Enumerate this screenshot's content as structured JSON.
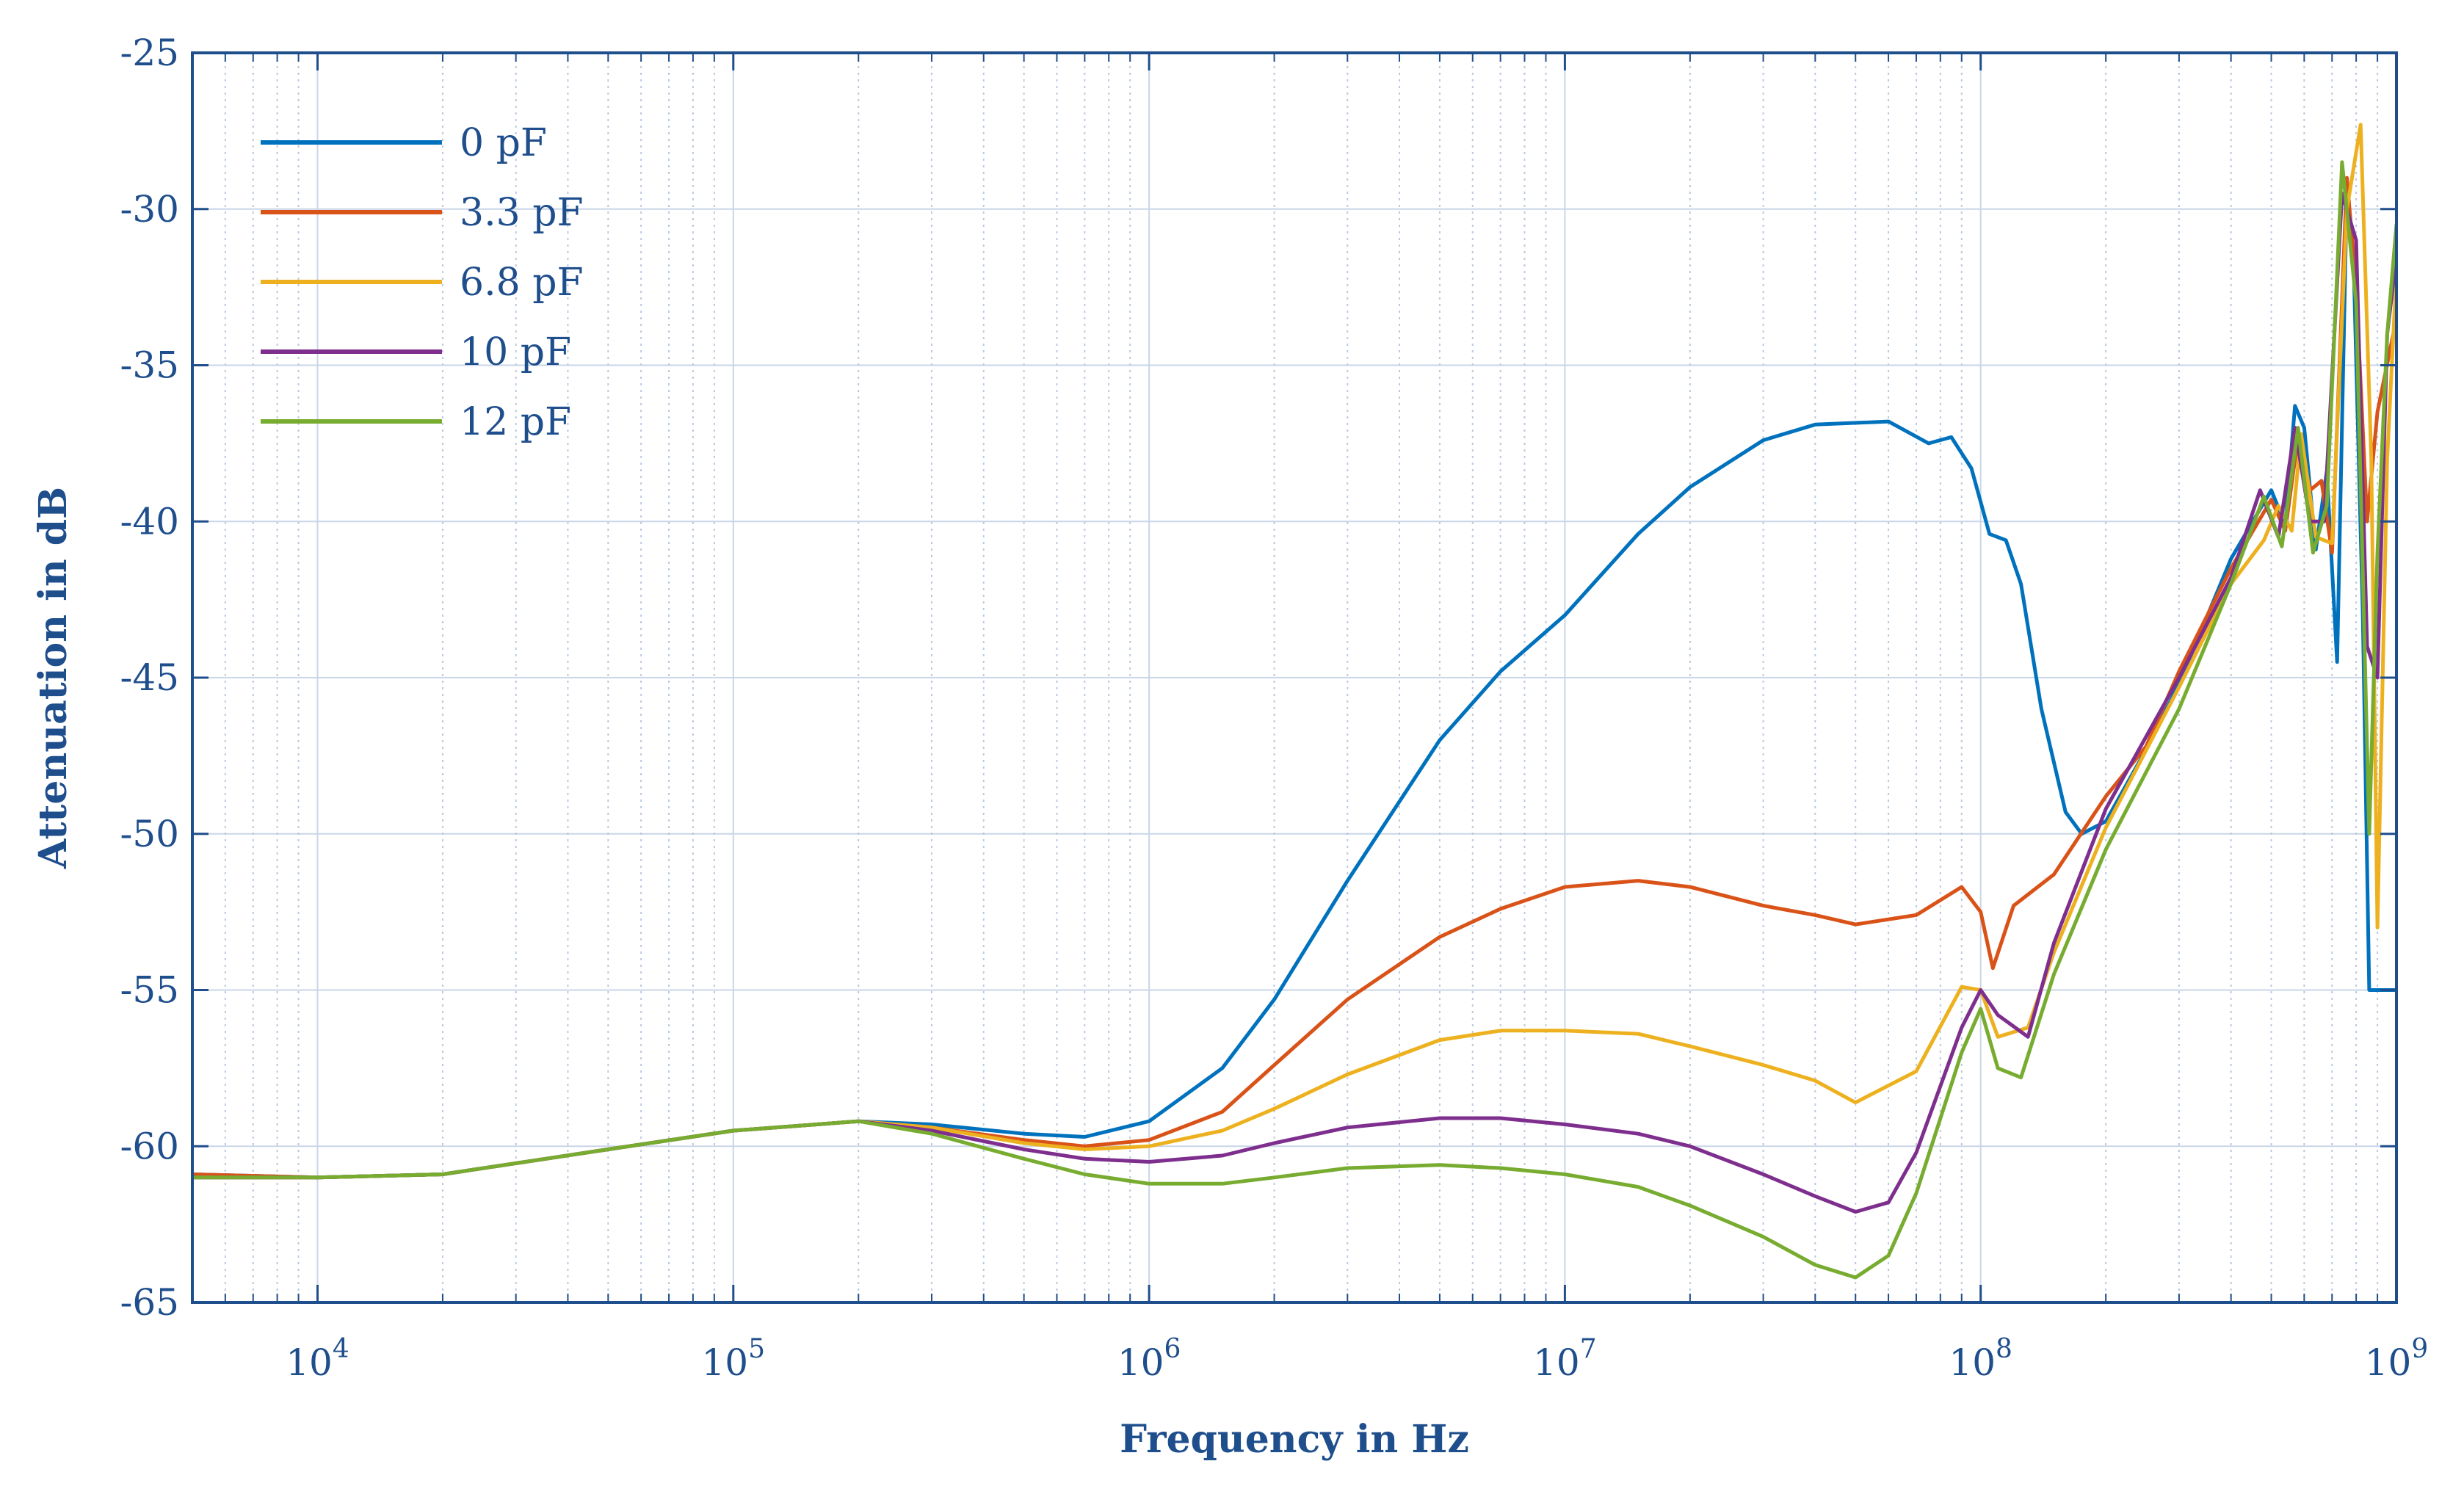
{
  "chart_data": {
    "type": "line",
    "title": "",
    "xlabel": "Frequency in Hz",
    "ylabel": "Attenuation in dB",
    "xscale": "log",
    "xlim": [
      5000,
      1000000000
    ],
    "ylim": [
      -65,
      -25
    ],
    "grid": true,
    "legend_position": "top-left",
    "axis_color": "#1f4e8c",
    "yticks": [
      -25,
      -30,
      -35,
      -40,
      -45,
      -50,
      -55,
      -60,
      -65
    ],
    "ytick_labels": [
      "-25",
      "-30",
      "-35",
      "-40",
      "-45",
      "-50",
      "-55",
      "-60",
      "-65"
    ],
    "xticks": [
      {
        "value": 10000,
        "base": "10",
        "exp": "4"
      },
      {
        "value": 100000,
        "base": "10",
        "exp": "5"
      },
      {
        "value": 1000000,
        "base": "10",
        "exp": "6"
      },
      {
        "value": 10000000,
        "base": "10",
        "exp": "7"
      },
      {
        "value": 100000000,
        "base": "10",
        "exp": "8"
      },
      {
        "value": 1000000000,
        "base": "10",
        "exp": "9"
      }
    ],
    "series": [
      {
        "name": "0 pF",
        "color": "#0072bd",
        "points": [
          [
            5000,
            -60.9
          ],
          [
            10000,
            -61.0
          ],
          [
            20000,
            -60.9
          ],
          [
            50000,
            -60.1
          ],
          [
            100000,
            -59.5
          ],
          [
            200000,
            -59.2
          ],
          [
            300000,
            -59.3
          ],
          [
            500000,
            -59.6
          ],
          [
            700000,
            -59.7
          ],
          [
            1000000,
            -59.2
          ],
          [
            1500000,
            -57.5
          ],
          [
            2000000,
            -55.3
          ],
          [
            3000000,
            -51.5
          ],
          [
            5000000,
            -47.0
          ],
          [
            7000000,
            -44.8
          ],
          [
            10000000,
            -43.0
          ],
          [
            15000000,
            -40.4
          ],
          [
            20000000,
            -38.9
          ],
          [
            30000000,
            -37.4
          ],
          [
            40000000,
            -36.9
          ],
          [
            60000000,
            -36.8
          ],
          [
            75000000,
            -37.5
          ],
          [
            85000000,
            -37.3
          ],
          [
            95000000,
            -38.3
          ],
          [
            105000000,
            -40.4
          ],
          [
            115000000,
            -40.6
          ],
          [
            125000000,
            -42.0
          ],
          [
            140000000,
            -46.0
          ],
          [
            160000000,
            -49.3
          ],
          [
            175000000,
            -50.0
          ],
          [
            200000000,
            -49.6
          ],
          [
            250000000,
            -47.3
          ],
          [
            300000000,
            -45.2
          ],
          [
            400000000,
            -41.2
          ],
          [
            470000000,
            -39.6
          ],
          [
            500000000,
            -39.0
          ],
          [
            540000000,
            -40.1
          ],
          [
            570000000,
            -36.3
          ],
          [
            600000000,
            -37.0
          ],
          [
            640000000,
            -40.9
          ],
          [
            680000000,
            -38.4
          ],
          [
            720000000,
            -44.5
          ],
          [
            760000000,
            -29.3
          ],
          [
            790000000,
            -32.0
          ],
          [
            830000000,
            -43.0
          ],
          [
            860000000,
            -55.0
          ],
          [
            900000000,
            -55.0
          ],
          [
            1000000000,
            -55.0
          ]
        ]
      },
      {
        "name": "3.3 pF",
        "color": "#d95319",
        "points": [
          [
            5000,
            -60.9
          ],
          [
            10000,
            -61.0
          ],
          [
            20000,
            -60.9
          ],
          [
            50000,
            -60.1
          ],
          [
            100000,
            -59.5
          ],
          [
            200000,
            -59.2
          ],
          [
            300000,
            -59.4
          ],
          [
            500000,
            -59.8
          ],
          [
            700000,
            -60.0
          ],
          [
            1000000,
            -59.8
          ],
          [
            1500000,
            -58.9
          ],
          [
            2000000,
            -57.4
          ],
          [
            3000000,
            -55.3
          ],
          [
            5000000,
            -53.3
          ],
          [
            7000000,
            -52.4
          ],
          [
            10000000,
            -51.7
          ],
          [
            15000000,
            -51.5
          ],
          [
            20000000,
            -51.7
          ],
          [
            30000000,
            -52.3
          ],
          [
            40000000,
            -52.6
          ],
          [
            50000000,
            -52.9
          ],
          [
            70000000,
            -52.6
          ],
          [
            90000000,
            -51.7
          ],
          [
            100000000,
            -52.5
          ],
          [
            107000000,
            -54.3
          ],
          [
            120000000,
            -52.3
          ],
          [
            150000000,
            -51.3
          ],
          [
            200000000,
            -48.8
          ],
          [
            250000000,
            -47.2
          ],
          [
            300000000,
            -44.8
          ],
          [
            400000000,
            -41.5
          ],
          [
            500000000,
            -39.3
          ],
          [
            540000000,
            -40.3
          ],
          [
            580000000,
            -37.3
          ],
          [
            620000000,
            -39.0
          ],
          [
            660000000,
            -38.7
          ],
          [
            700000000,
            -41.0
          ],
          [
            760000000,
            -29.0
          ],
          [
            800000000,
            -32.5
          ],
          [
            850000000,
            -40.0
          ],
          [
            900000000,
            -36.5
          ],
          [
            1000000000,
            -33.5
          ]
        ]
      },
      {
        "name": "6.8 pF",
        "color": "#edb120",
        "points": [
          [
            5000,
            -61.0
          ],
          [
            10000,
            -61.0
          ],
          [
            20000,
            -60.9
          ],
          [
            50000,
            -60.1
          ],
          [
            100000,
            -59.5
          ],
          [
            200000,
            -59.2
          ],
          [
            300000,
            -59.4
          ],
          [
            500000,
            -59.9
          ],
          [
            700000,
            -60.1
          ],
          [
            1000000,
            -60.0
          ],
          [
            1500000,
            -59.5
          ],
          [
            2000000,
            -58.8
          ],
          [
            3000000,
            -57.7
          ],
          [
            5000000,
            -56.6
          ],
          [
            7000000,
            -56.3
          ],
          [
            10000000,
            -56.3
          ],
          [
            15000000,
            -56.4
          ],
          [
            20000000,
            -56.8
          ],
          [
            30000000,
            -57.4
          ],
          [
            40000000,
            -57.9
          ],
          [
            50000000,
            -58.6
          ],
          [
            70000000,
            -57.6
          ],
          [
            90000000,
            -54.9
          ],
          [
            100000000,
            -55.0
          ],
          [
            110000000,
            -56.5
          ],
          [
            130000000,
            -56.2
          ],
          [
            150000000,
            -53.8
          ],
          [
            200000000,
            -49.8
          ],
          [
            300000000,
            -45.3
          ],
          [
            400000000,
            -42.0
          ],
          [
            480000000,
            -40.6
          ],
          [
            520000000,
            -39.5
          ],
          [
            560000000,
            -40.3
          ],
          [
            590000000,
            -37.2
          ],
          [
            640000000,
            -40.5
          ],
          [
            700000000,
            -40.7
          ],
          [
            760000000,
            -30.0
          ],
          [
            820000000,
            -27.3
          ],
          [
            870000000,
            -38.0
          ],
          [
            900000000,
            -53.0
          ],
          [
            950000000,
            -38.0
          ],
          [
            1000000000,
            -32.0
          ]
        ]
      },
      {
        "name": "10 pF",
        "color": "#7e2f8e",
        "points": [
          [
            5000,
            -61.0
          ],
          [
            10000,
            -61.0
          ],
          [
            20000,
            -60.9
          ],
          [
            50000,
            -60.1
          ],
          [
            100000,
            -59.5
          ],
          [
            200000,
            -59.2
          ],
          [
            300000,
            -59.5
          ],
          [
            500000,
            -60.1
          ],
          [
            700000,
            -60.4
          ],
          [
            1000000,
            -60.5
          ],
          [
            1500000,
            -60.3
          ],
          [
            2000000,
            -59.9
          ],
          [
            3000000,
            -59.4
          ],
          [
            5000000,
            -59.1
          ],
          [
            7000000,
            -59.1
          ],
          [
            10000000,
            -59.3
          ],
          [
            15000000,
            -59.6
          ],
          [
            20000000,
            -60.0
          ],
          [
            30000000,
            -60.9
          ],
          [
            40000000,
            -61.6
          ],
          [
            50000000,
            -62.1
          ],
          [
            60000000,
            -61.8
          ],
          [
            70000000,
            -60.2
          ],
          [
            90000000,
            -56.2
          ],
          [
            100000000,
            -55.0
          ],
          [
            110000000,
            -55.8
          ],
          [
            130000000,
            -56.5
          ],
          [
            150000000,
            -53.5
          ],
          [
            200000000,
            -49.2
          ],
          [
            300000000,
            -45.0
          ],
          [
            400000000,
            -41.8
          ],
          [
            470000000,
            -39.0
          ],
          [
            520000000,
            -40.5
          ],
          [
            570000000,
            -37.0
          ],
          [
            620000000,
            -40.0
          ],
          [
            670000000,
            -40.0
          ],
          [
            740000000,
            -29.5
          ],
          [
            800000000,
            -31.0
          ],
          [
            850000000,
            -44.0
          ],
          [
            900000000,
            -45.0
          ],
          [
            950000000,
            -34.0
          ],
          [
            1000000000,
            -31.5
          ]
        ]
      },
      {
        "name": "12 pF",
        "color": "#77ac30",
        "points": [
          [
            5000,
            -61.0
          ],
          [
            10000,
            -61.0
          ],
          [
            20000,
            -60.9
          ],
          [
            50000,
            -60.1
          ],
          [
            100000,
            -59.5
          ],
          [
            200000,
            -59.2
          ],
          [
            300000,
            -59.6
          ],
          [
            500000,
            -60.4
          ],
          [
            700000,
            -60.9
          ],
          [
            1000000,
            -61.2
          ],
          [
            1500000,
            -61.2
          ],
          [
            2000000,
            -61.0
          ],
          [
            3000000,
            -60.7
          ],
          [
            5000000,
            -60.6
          ],
          [
            7000000,
            -60.7
          ],
          [
            10000000,
            -60.9
          ],
          [
            15000000,
            -61.3
          ],
          [
            20000000,
            -61.9
          ],
          [
            30000000,
            -62.9
          ],
          [
            40000000,
            -63.8
          ],
          [
            50000000,
            -64.2
          ],
          [
            60000000,
            -63.5
          ],
          [
            70000000,
            -61.5
          ],
          [
            90000000,
            -57.0
          ],
          [
            100000000,
            -55.6
          ],
          [
            110000000,
            -57.5
          ],
          [
            125000000,
            -57.8
          ],
          [
            150000000,
            -54.5
          ],
          [
            200000000,
            -50.5
          ],
          [
            300000000,
            -46.0
          ],
          [
            400000000,
            -42.0
          ],
          [
            480000000,
            -39.2
          ],
          [
            530000000,
            -40.8
          ],
          [
            580000000,
            -37.0
          ],
          [
            630000000,
            -41.0
          ],
          [
            680000000,
            -39.5
          ],
          [
            740000000,
            -28.5
          ],
          [
            800000000,
            -33.0
          ],
          [
            860000000,
            -50.0
          ],
          [
            900000000,
            -41.0
          ],
          [
            950000000,
            -34.0
          ],
          [
            1000000000,
            -30.5
          ]
        ]
      }
    ]
  }
}
